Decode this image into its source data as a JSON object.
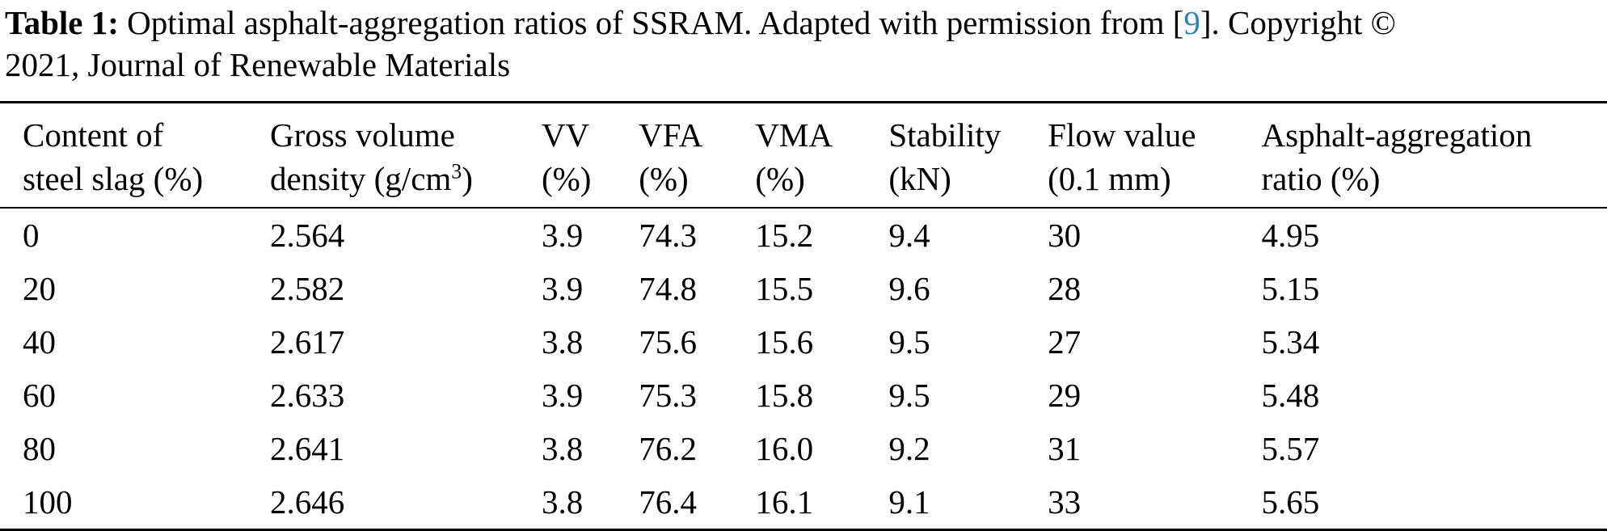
{
  "caption": {
    "label": "Table 1:",
    "line1_mid": " Optimal asphalt-aggregation ratios of SSRAM. Adapted with permission from [",
    "ref": "9",
    "line1_end": "]. Copyright ©",
    "line2": "2021, Journal of Renewable Materials"
  },
  "colors": {
    "citation_blue": "#2b85c2",
    "text": "#000000",
    "background": "#ffffff",
    "rule": "#000000"
  },
  "table": {
    "headers": [
      {
        "line1": "Content of",
        "line2": "steel slag (%)"
      },
      {
        "line1": "Gross volume",
        "line2_pre": "density (g/cm",
        "line2_sup": "3",
        "line2_post": ")"
      },
      {
        "line1": "VV",
        "line2": "(%)"
      },
      {
        "line1": "VFA",
        "line2": "(%)"
      },
      {
        "line1": "VMA",
        "line2": "(%)"
      },
      {
        "line1": "Stability",
        "line2": "(kN)"
      },
      {
        "line1": "Flow value",
        "line2": "(0.1 mm)"
      },
      {
        "line1": "Asphalt-aggregation",
        "line2": "ratio (%)"
      }
    ],
    "rows": [
      [
        "0",
        "2.564",
        "3.9",
        "74.3",
        "15.2",
        "9.4",
        "30",
        "4.95"
      ],
      [
        "20",
        "2.582",
        "3.9",
        "74.8",
        "15.5",
        "9.6",
        "28",
        "5.15"
      ],
      [
        "40",
        "2.617",
        "3.8",
        "75.6",
        "15.6",
        "9.5",
        "27",
        "5.34"
      ],
      [
        "60",
        "2.633",
        "3.9",
        "75.3",
        "15.8",
        "9.5",
        "29",
        "5.48"
      ],
      [
        "80",
        "2.641",
        "3.8",
        "76.2",
        "16.0",
        "9.2",
        "31",
        "5.57"
      ],
      [
        "100",
        "2.646",
        "3.8",
        "76.4",
        "16.1",
        "9.1",
        "33",
        "5.65"
      ]
    ]
  }
}
